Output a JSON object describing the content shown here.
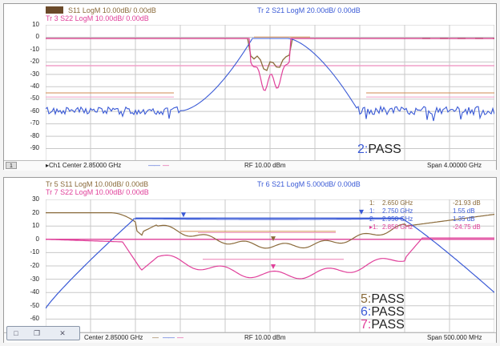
{
  "colors": {
    "brown": "#8a6a3a",
    "blue": "#3a5ad6",
    "pink": "#e0409a",
    "pink_limit": "#f0a0c8",
    "brown_limit": "#d08a50",
    "grid": "#c8c8c8"
  },
  "top_panel": {
    "trace1": "S11 LogM 10.00dB/ 0.00dB",
    "trace2": "Tr 2  S21 LogM 20.00dB/ 0.00dB",
    "trace3": "Tr 3  S22 LogM 10.00dB/ 0.00dB",
    "y_ticks": [
      "10",
      "0",
      "-10",
      "-20",
      "-30",
      "-40",
      "-50",
      "-60",
      "-70",
      "-80",
      "-90"
    ],
    "pass_num": "2:",
    "pass_text": "PASS",
    "status": {
      "channel": "▸Ch1  Center  2.85000 GHz",
      "rf": "RF  10.00 dBm",
      "span": "Span  4.00000 GHz",
      "button": "1"
    }
  },
  "bottom_panel": {
    "trace5": "Tr 5  S11 LogM 10.00dB/ 0.00dB",
    "trace6": "Tr 6  S21 LogM 5.000dB/ 0.00dB",
    "trace7": "Tr 7  S22 LogM 10.00dB/ 0.00dB",
    "y_ticks": [
      "30",
      "20",
      "10",
      "0",
      "-10",
      "-20",
      "-30",
      "-40",
      "-50",
      "-60"
    ],
    "markers": [
      {
        "id": "1:",
        "freq": "2.650  GHz",
        "value": "-21.93 dB"
      },
      {
        "id": "1:",
        "freq": "2.750  GHz",
        "value": "1.55 dB"
      },
      {
        "id": "2:",
        "freq": "2.950  GHz",
        "value": "1.35 dB"
      },
      {
        "id": "▸1:",
        "freq": "2.850  GHz",
        "value": "-24.75 dB"
      }
    ],
    "pass": [
      {
        "num": "5:",
        "text": "PASS"
      },
      {
        "num": "6:",
        "text": "PASS"
      },
      {
        "num": "7:",
        "text": "PASS"
      }
    ],
    "status": {
      "channel": "Center  2.85000 GHz",
      "rf": "RF  10.00 dBm",
      "span": "Span  500.000 MHz"
    }
  },
  "window_controls": [
    "□",
    "❐",
    "✕"
  ]
}
